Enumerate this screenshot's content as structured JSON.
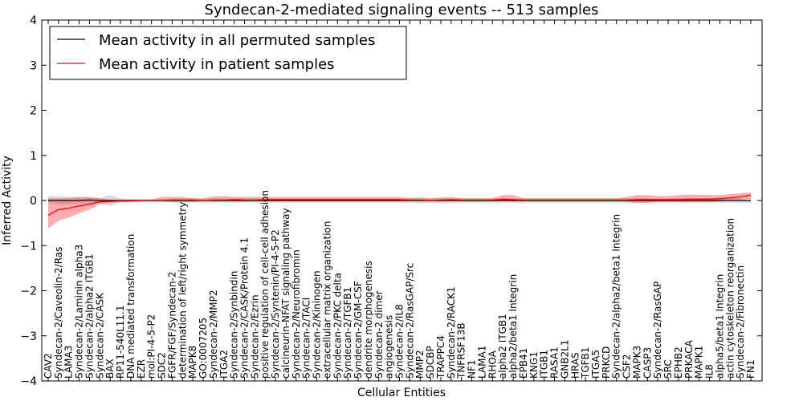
{
  "chart_data": {
    "type": "line",
    "title": "Syndecan-2-mediated signaling events -- 513 samples",
    "xlabel": "Cellular Entities",
    "ylabel": "Inferred Activity",
    "ylim": [
      -4,
      4
    ],
    "yticks": [
      "4",
      "3",
      "2",
      "1",
      "0",
      "−1",
      "−2",
      "−3",
      "−4"
    ],
    "legend": {
      "placement": "top-left"
    },
    "categories": [
      "CAV2",
      "Syndecan-2/Caveolin-2/Ras",
      "LAMA3",
      "Syndecan-2/Laminin alpha3",
      "Syndecan-2/alpha2 ITGB1",
      "Syndecan-2/CASK",
      "BAX",
      "RP11-540L11.1",
      "DNA mediated transformation",
      "EZR",
      "mol:PI-4-5-P2",
      "SDC2",
      "FGFR/FGF/Syndecan-2",
      "determination of left/right symmetry",
      "MAPK8",
      "GO:0007205",
      "Syndecan-2/MMP2",
      "ITGA2",
      "Syndecan-2/Synbindin",
      "Syndecan-2/CASK/Protein 4.1",
      "Syndecan-2/Ezrin",
      "positive regulation of cell-cell adhesion",
      "Syndecan-2/Syntenin/PI-4-5-P2",
      "calcineurin-NFAT signaling pathway",
      "Syndecan-2/Neurofibromin",
      "Syndecan-2/TACI",
      "Syndecan-2/Kininogen",
      "extracellular matrix organization",
      "Syndecan-2/PKC delta",
      "Syndecan-2/TGFB1",
      "Syndecan-2/GM-CSF",
      "dendrite morphogenesis",
      "Syndecan-2 dimer",
      "angiogenesis",
      "Syndecan-2/IL8",
      "Syndecan-2/RasGAP/Src",
      "MMP2",
      "SDCBP",
      "TRAPPC4",
      "Syndecan-2/RACK1",
      "TNFRSF13B",
      "NF1",
      "LAMA1",
      "RHOA",
      "alpha2 ITGB1",
      "alpha2/beta1 Integrin",
      "EPB41",
      "KNG1",
      "ITGB1",
      "RASA1",
      "GNB2L1",
      "HRAS",
      "TGFB1",
      "ITGA5",
      "PRKCD",
      "Syndecan-2/alpha2/beta1 Integrin",
      "CSF2",
      "MAPK3",
      "CASP3",
      "Syndecan-2/RasGAP",
      "SRC",
      "EPHB2",
      "PRKACA",
      "MAPK1",
      "IL8",
      "alpha5/beta1 Integrin",
      "actin cytoskeleton reorganization",
      "Syndecan-2/Fibronectin",
      "FN1"
    ],
    "series": [
      {
        "name": "Mean activity in all permuted samples",
        "color": "#000000",
        "values": [
          0.0,
          0.0,
          0.0,
          0.0,
          0.01,
          0.0,
          0.0,
          0.0,
          0.0,
          0.0,
          0.0,
          0.0,
          0.0,
          0.0,
          0.0,
          0.0,
          0.0,
          0.0,
          0.0,
          0.0,
          0.0,
          0.0,
          0.0,
          0.0,
          0.0,
          0.0,
          0.0,
          0.0,
          0.0,
          0.0,
          0.0,
          0.0,
          0.0,
          0.0,
          0.0,
          0.0,
          0.0,
          0.0,
          0.0,
          0.0,
          0.0,
          0.0,
          0.0,
          0.0,
          0.0,
          0.0,
          0.0,
          0.0,
          0.0,
          0.0,
          0.0,
          0.0,
          0.0,
          0.0,
          0.0,
          0.0,
          0.0,
          0.0,
          0.0,
          0.0,
          0.0,
          0.0,
          0.0,
          0.0,
          0.0,
          0.0,
          0.0,
          0.0,
          0.0
        ]
      },
      {
        "name": "Mean activity in patient samples",
        "color": "#ff0000",
        "values": [
          -0.33,
          -0.2,
          -0.17,
          -0.12,
          -0.08,
          -0.03,
          -0.02,
          -0.01,
          -0.01,
          0.0,
          0.0,
          0.0,
          0.01,
          0.01,
          0.01,
          0.0,
          0.01,
          0.01,
          0.02,
          0.01,
          0.01,
          0.02,
          0.02,
          0.02,
          0.02,
          0.02,
          0.02,
          0.02,
          0.02,
          0.02,
          0.02,
          0.02,
          0.02,
          0.02,
          0.02,
          0.01,
          0.01,
          0.0,
          0.01,
          0.02,
          0.01,
          0.01,
          0.01,
          0.01,
          0.03,
          0.02,
          0.01,
          0.01,
          0.01,
          0.01,
          0.01,
          0.01,
          0.01,
          0.01,
          0.01,
          0.01,
          0.01,
          0.02,
          0.02,
          0.02,
          0.02,
          0.02,
          0.03,
          0.03,
          0.03,
          0.04,
          0.06,
          0.08,
          0.12
        ]
      }
    ],
    "bands": [
      {
        "name": "permuted spread",
        "color": "#bbbbbb",
        "lower": [
          -0.05,
          -0.1,
          -0.08,
          -0.07,
          -0.06,
          -0.05,
          -0.12,
          -0.05,
          -0.03,
          -0.03,
          -0.03,
          -0.03,
          -0.05,
          -0.05,
          -0.05,
          -0.04,
          -0.05,
          -0.05,
          -0.05,
          -0.05,
          -0.05,
          -0.05,
          -0.05,
          -0.05,
          -0.05,
          -0.05,
          -0.05,
          -0.05,
          -0.05,
          -0.05,
          -0.05,
          -0.05,
          -0.05,
          -0.05,
          -0.05,
          -0.05,
          -0.06,
          -0.05,
          -0.05,
          -0.05,
          -0.05,
          -0.05,
          -0.05,
          -0.05,
          -0.05,
          -0.05,
          -0.05,
          -0.05,
          -0.05,
          -0.05,
          -0.05,
          -0.05,
          -0.05,
          -0.05,
          -0.05,
          -0.05,
          -0.05,
          -0.05,
          -0.05,
          -0.05,
          -0.05,
          -0.05,
          -0.05,
          -0.05,
          -0.05,
          -0.05,
          -0.05,
          -0.05,
          -0.05
        ],
        "upper": [
          0.1,
          0.1,
          0.08,
          0.07,
          0.06,
          0.05,
          0.12,
          0.05,
          0.03,
          0.03,
          0.03,
          0.03,
          0.05,
          0.05,
          0.05,
          0.04,
          0.05,
          0.05,
          0.05,
          0.05,
          0.05,
          0.05,
          0.05,
          0.05,
          0.05,
          0.05,
          0.05,
          0.05,
          0.05,
          0.05,
          0.05,
          0.05,
          0.05,
          0.05,
          0.05,
          0.05,
          0.08,
          0.05,
          0.05,
          0.05,
          0.05,
          0.05,
          0.05,
          0.05,
          0.05,
          0.05,
          0.05,
          0.05,
          0.05,
          0.05,
          0.05,
          0.05,
          0.05,
          0.05,
          0.05,
          0.05,
          0.05,
          0.05,
          0.05,
          0.05,
          0.05,
          0.05,
          0.05,
          0.05,
          0.05,
          0.05,
          0.05,
          0.05,
          0.05
        ]
      },
      {
        "name": "patient spread",
        "color": "#ff0000",
        "lower": [
          -0.62,
          -0.45,
          -0.38,
          -0.28,
          -0.2,
          -0.08,
          -0.05,
          -0.03,
          -0.03,
          -0.02,
          -0.02,
          -0.02,
          -0.03,
          -0.03,
          -0.03,
          -0.02,
          -0.02,
          -0.02,
          -0.02,
          -0.02,
          -0.02,
          -0.02,
          -0.02,
          -0.02,
          -0.02,
          -0.02,
          -0.02,
          -0.02,
          -0.02,
          -0.02,
          -0.02,
          -0.02,
          -0.02,
          -0.02,
          -0.02,
          -0.02,
          -0.02,
          -0.02,
          -0.02,
          -0.02,
          -0.02,
          -0.02,
          -0.02,
          -0.02,
          -0.02,
          -0.02,
          -0.02,
          -0.02,
          -0.02,
          -0.02,
          -0.02,
          -0.02,
          -0.02,
          -0.02,
          -0.02,
          -0.02,
          -0.03,
          -0.05,
          -0.05,
          -0.03,
          -0.03,
          -0.03,
          -0.03,
          -0.03,
          -0.03,
          -0.02,
          0.0,
          0.02,
          0.05
        ],
        "upper": [
          0.05,
          0.05,
          0.05,
          0.08,
          0.08,
          0.05,
          0.02,
          0.01,
          0.01,
          0.02,
          0.02,
          0.08,
          0.08,
          0.08,
          0.05,
          0.05,
          0.09,
          0.1,
          0.08,
          0.08,
          0.08,
          0.08,
          0.08,
          0.08,
          0.08,
          0.08,
          0.08,
          0.08,
          0.08,
          0.08,
          0.08,
          0.08,
          0.08,
          0.08,
          0.08,
          0.06,
          0.05,
          0.05,
          0.07,
          0.08,
          0.05,
          0.05,
          0.05,
          0.05,
          0.12,
          0.12,
          0.05,
          0.05,
          0.05,
          0.05,
          0.05,
          0.05,
          0.05,
          0.05,
          0.05,
          0.05,
          0.08,
          0.12,
          0.12,
          0.1,
          0.1,
          0.12,
          0.13,
          0.13,
          0.12,
          0.12,
          0.14,
          0.16,
          0.18
        ]
      }
    ]
  }
}
